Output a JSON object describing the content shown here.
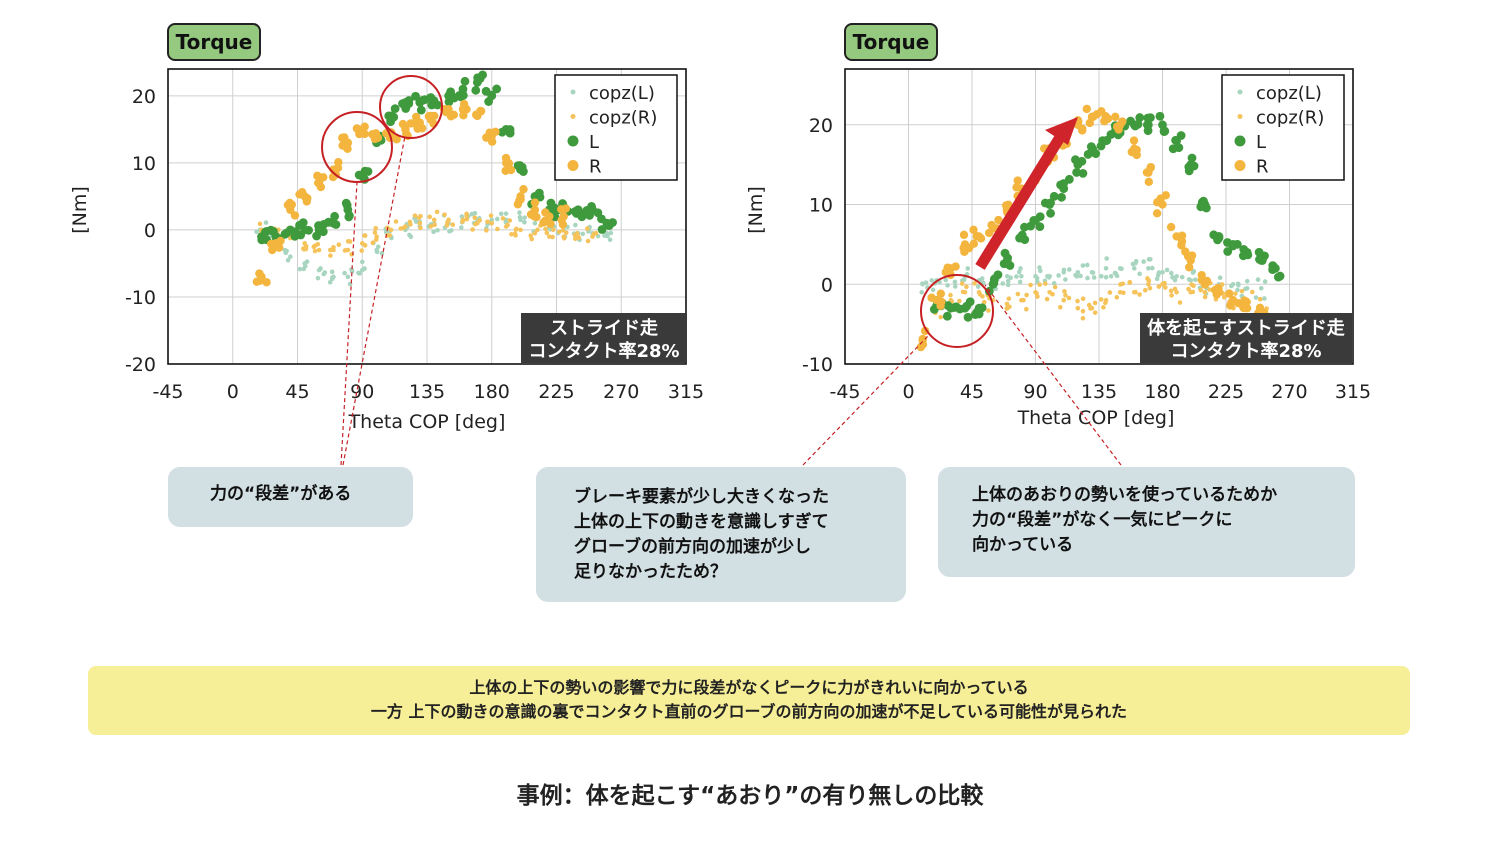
{
  "colors": {
    "green": "#3f9a3d",
    "orange": "#f3b53e",
    "copz_green": "#a8d5bf",
    "copz_orange": "#f6c35a",
    "torque_badge": "#94c97f",
    "highlight_circle": "#c62024",
    "arrow": "#d0242b",
    "dark_badge": "#3a3a3a",
    "note_bg": "#d2e0e4",
    "summary_bg": "#f6ef97"
  },
  "chart_data": [
    {
      "type": "scatter",
      "badge": "Torque",
      "xlabel": "Theta COP [deg]",
      "ylabel": "[Nm]",
      "xlim": [
        -45,
        315
      ],
      "ylim": [
        -20,
        24
      ],
      "xticks": [
        -45,
        0,
        45,
        90,
        135,
        180,
        225,
        270,
        315
      ],
      "yticks": [
        -20,
        -10,
        0,
        10,
        20
      ],
      "grid": true,
      "legend_position": "top-right",
      "legend": [
        "copz(L)",
        "copz(R)",
        "L",
        "R"
      ],
      "tag_lines": [
        "ストライド走",
        "コンタクト率28%"
      ],
      "series": [
        {
          "name": "copz(L)",
          "x": [
            20,
            30,
            40,
            50,
            60,
            70,
            80,
            90,
            100,
            110,
            120,
            130,
            140,
            150,
            160,
            170,
            180,
            190,
            200,
            210,
            220,
            230,
            240,
            250,
            260
          ],
          "y": [
            0,
            -2,
            -4,
            -5,
            -6,
            -7,
            -7,
            -6,
            -3,
            -1,
            0,
            0.5,
            1,
            1,
            1.5,
            1.5,
            1.5,
            1.5,
            1.5,
            1,
            0.5,
            0,
            -0.5,
            -0.5,
            -0.5
          ]
        },
        {
          "name": "copz(R)",
          "x": [
            20,
            30,
            40,
            50,
            60,
            70,
            80,
            90,
            100,
            110,
            120,
            130,
            140,
            150,
            160,
            170,
            180,
            190,
            200,
            210,
            220,
            230,
            240,
            250
          ],
          "y": [
            0,
            0,
            -1,
            -2,
            -3,
            -3,
            -3,
            -2,
            -1,
            0,
            0.5,
            1,
            1.5,
            1.5,
            1.5,
            1,
            1,
            0.5,
            0,
            -0.5,
            -1,
            -1,
            -1,
            -1
          ]
        },
        {
          "name": "L",
          "x": [
            20,
            30,
            40,
            50,
            60,
            70,
            80,
            90,
            100,
            110,
            120,
            130,
            140,
            150,
            160,
            170,
            180,
            190,
            200,
            210,
            220,
            230,
            240,
            250,
            260
          ],
          "y": [
            -1,
            -1,
            0,
            0,
            0,
            1,
            3,
            8,
            13,
            17,
            19,
            19,
            19,
            20,
            21,
            22,
            20,
            15,
            9,
            5,
            3,
            3,
            3,
            3,
            1
          ]
        },
        {
          "name": "R",
          "x": [
            20,
            30,
            40,
            50,
            60,
            70,
            80,
            90,
            100,
            110,
            120,
            130,
            140,
            150,
            160,
            170,
            180,
            190,
            200,
            210,
            220,
            230
          ],
          "y": [
            -7,
            -2,
            3,
            5,
            7,
            9,
            13,
            15,
            14,
            14,
            15,
            16,
            17,
            18,
            18,
            17,
            14,
            10,
            5,
            3,
            2,
            2
          ]
        }
      ]
    },
    {
      "type": "scatter",
      "badge": "Torque",
      "xlabel": "Theta COP [deg]",
      "ylabel": "[Nm]",
      "xlim": [
        -45,
        315
      ],
      "ylim": [
        -10,
        27
      ],
      "xticks": [
        -45,
        0,
        45,
        90,
        135,
        180,
        225,
        270,
        315
      ],
      "yticks": [
        -10,
        0,
        10,
        20
      ],
      "grid": true,
      "legend_position": "top-right",
      "legend": [
        "copz(L)",
        "copz(R)",
        "L",
        "R"
      ],
      "tag_lines": [
        "体を起こすストライド走",
        "コンタクト率28%"
      ],
      "series": [
        {
          "name": "copz(L)",
          "x": [
            10,
            20,
            30,
            40,
            50,
            60,
            70,
            80,
            90,
            100,
            110,
            120,
            130,
            140,
            150,
            160,
            170,
            180,
            190,
            200,
            210,
            220,
            230,
            240,
            250
          ],
          "y": [
            0,
            0.5,
            1,
            1,
            0.5,
            0.5,
            1,
            1,
            1,
            1,
            1.5,
            1.5,
            1.5,
            2,
            2,
            2,
            2,
            1.5,
            1,
            0.5,
            0,
            0,
            0,
            -0.5,
            -0.5
          ]
        },
        {
          "name": "copz(R)",
          "x": [
            20,
            30,
            40,
            50,
            60,
            70,
            80,
            90,
            100,
            110,
            120,
            130,
            140,
            150,
            160,
            170,
            180,
            190,
            200,
            210,
            220,
            230,
            240,
            250
          ],
          "y": [
            -3,
            -2,
            -1,
            -1,
            -2,
            -3,
            -2,
            -1,
            -1,
            -2,
            -3,
            -3,
            -2,
            -1,
            -1,
            0,
            0,
            -1,
            -1,
            -1,
            -1,
            -2,
            -2,
            -3
          ]
        },
        {
          "name": "L",
          "x": [
            20,
            30,
            40,
            50,
            60,
            70,
            80,
            90,
            100,
            110,
            120,
            130,
            140,
            150,
            160,
            170,
            180,
            190,
            200,
            210,
            220,
            230,
            240,
            250,
            260
          ],
          "y": [
            -2,
            -3,
            -3,
            -3,
            0,
            3,
            6,
            8,
            10,
            12,
            15,
            17,
            18,
            19,
            20,
            20,
            20,
            18,
            15,
            10,
            6,
            5,
            4,
            3,
            2
          ]
        },
        {
          "name": "R",
          "x": [
            10,
            20,
            30,
            40,
            50,
            60,
            70,
            80,
            90,
            100,
            110,
            120,
            130,
            140,
            150,
            160,
            170,
            180,
            190,
            200,
            210,
            220,
            230,
            240,
            250
          ],
          "y": [
            -7,
            -2,
            2,
            5,
            6,
            7,
            9,
            12,
            13,
            16,
            18,
            20,
            21,
            21,
            20,
            17,
            14,
            10,
            6,
            3,
            0,
            -1,
            -2,
            -3,
            -4
          ]
        }
      ]
    }
  ],
  "notes": [
    {
      "lines": [
        "力の“段差”がある"
      ]
    },
    {
      "lines": [
        "ブレーキ要素が少し大きくなった",
        "上体の上下の動きを意識しすぎて",
        "グローブの前方向の加速が少し",
        "足りなかったため？"
      ]
    },
    {
      "lines": [
        "上体のあおりの勢いを使っているためか",
        "力の“段差”がなく一気にピークに",
        "向かっている"
      ]
    }
  ],
  "summary": {
    "lines": [
      "上体の上下の勢いの影響で力に段差がなくピークに力がきれいに向かっている",
      "一方 上下の動きの意識の裏でコンタクト直前のグローブの前方向の加速が不足している可能性が見られた"
    ]
  },
  "caption": "事例：体を起こす“あおり”の有り無しの比較"
}
